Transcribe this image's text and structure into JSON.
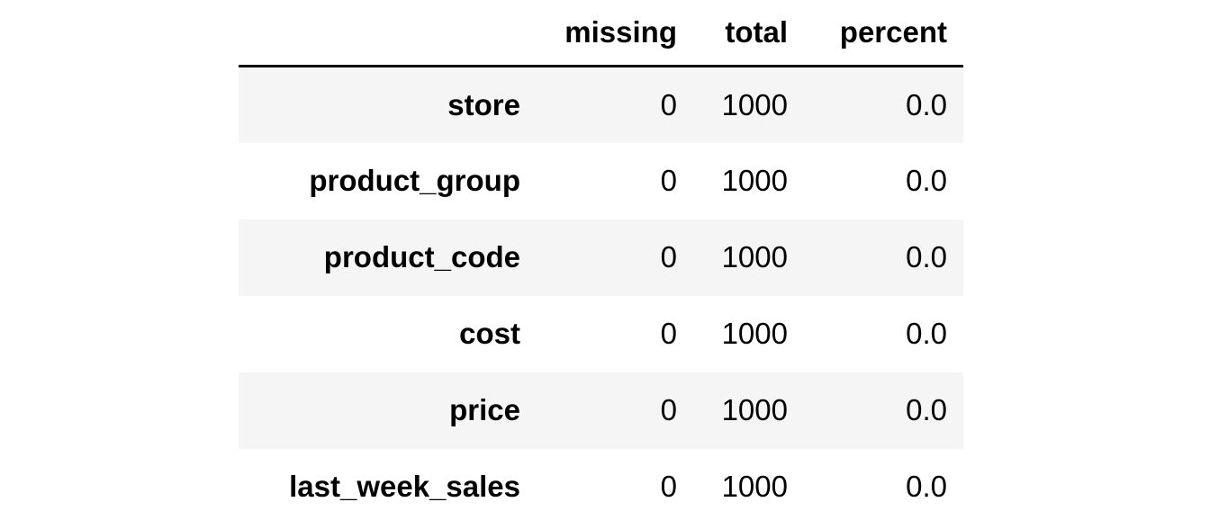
{
  "table": {
    "columns": [
      "",
      "missing",
      "total",
      "percent"
    ],
    "rows": [
      {
        "index": "store",
        "missing": "0",
        "total": "1000",
        "percent": "0.0"
      },
      {
        "index": "product_group",
        "missing": "0",
        "total": "1000",
        "percent": "0.0"
      },
      {
        "index": "product_code",
        "missing": "0",
        "total": "1000",
        "percent": "0.0"
      },
      {
        "index": "cost",
        "missing": "0",
        "total": "1000",
        "percent": "0.0"
      },
      {
        "index": "price",
        "missing": "0",
        "total": "1000",
        "percent": "0.0"
      },
      {
        "index": "last_week_sales",
        "missing": "0",
        "total": "1000",
        "percent": "0.0"
      }
    ]
  }
}
